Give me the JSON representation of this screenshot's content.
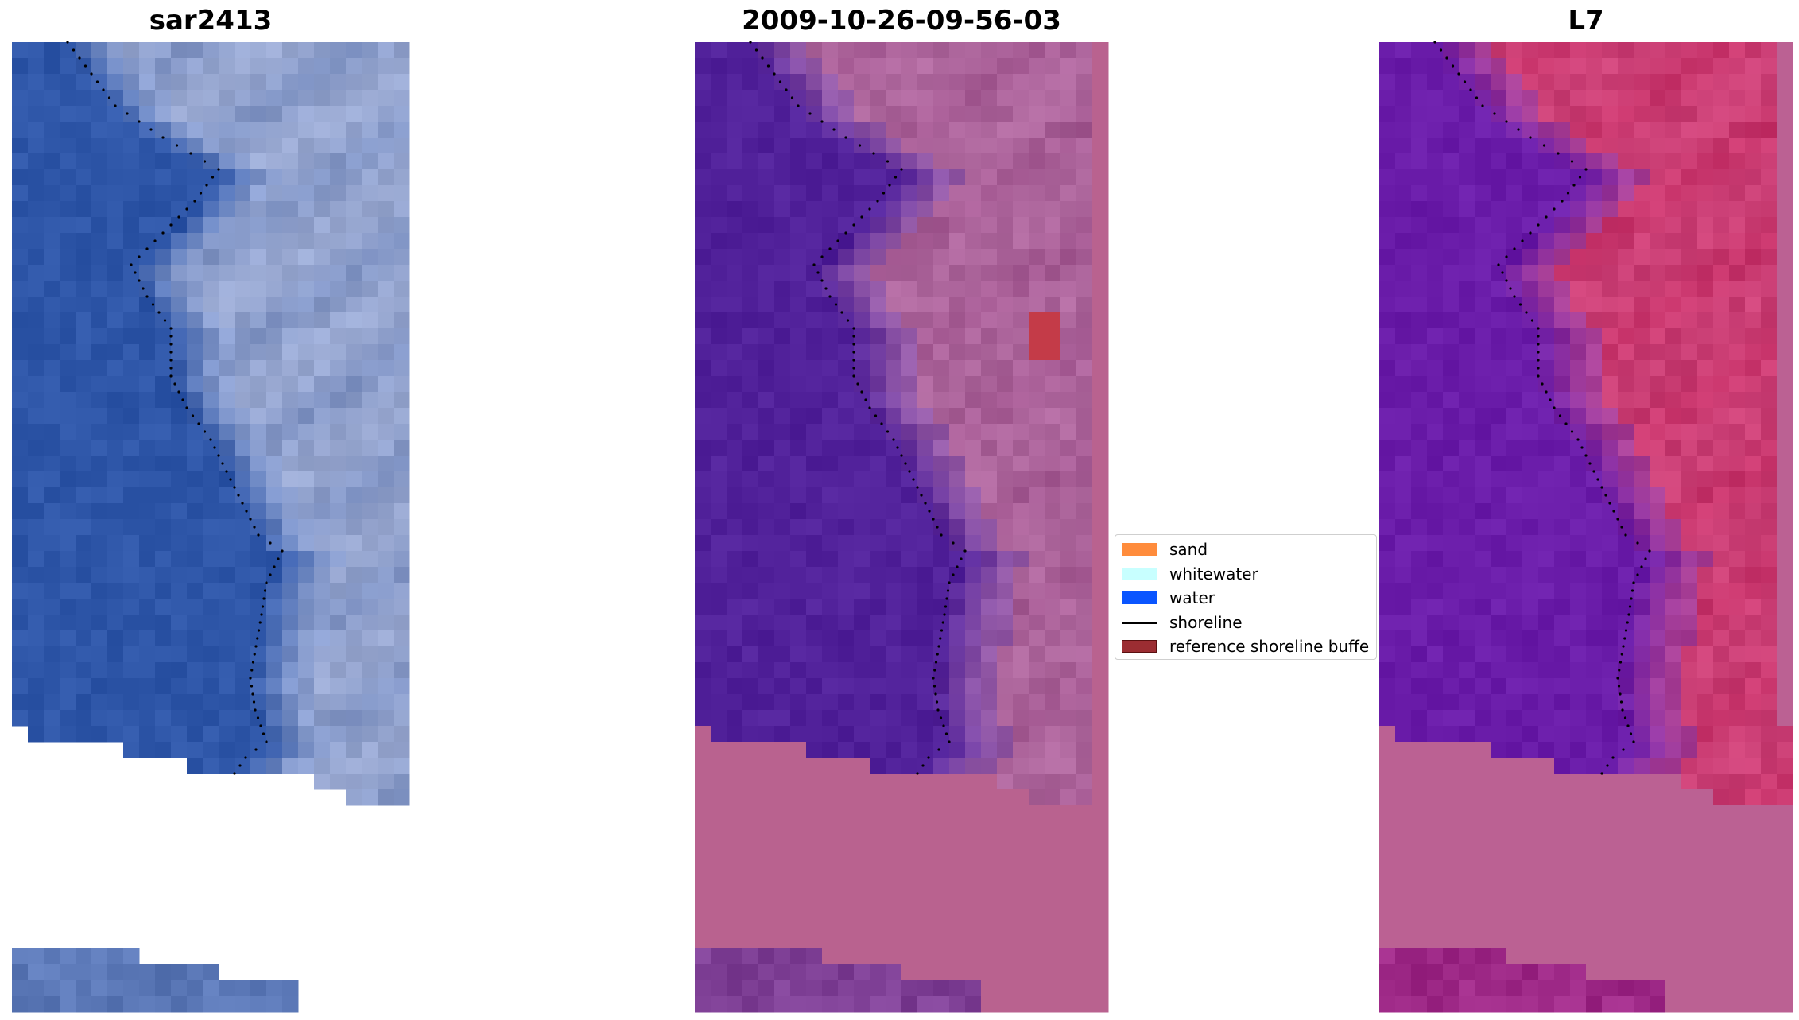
{
  "panels": [
    {
      "title": "sar2413"
    },
    {
      "title": "2009-10-26-09-56-03"
    },
    {
      "title": "L7"
    }
  ],
  "legend": {
    "items": [
      {
        "label": "sand",
        "color": "#ff8c3c",
        "kind": "patch"
      },
      {
        "label": "whitewater",
        "color": "#c8ffff",
        "kind": "patch"
      },
      {
        "label": "water",
        "color": "#0a55ff",
        "kind": "patch"
      },
      {
        "label": "shoreline",
        "color": "#000000",
        "kind": "line"
      },
      {
        "label": "reference shoreline buffe",
        "color": "#9b2d32",
        "kind": "patch"
      }
    ]
  },
  "colors": {
    "sea_rgb": "#2e56a8",
    "land_rgb": "#7f93c4",
    "surf_rgb": "#c9d0ea",
    "class_water": "#51219a",
    "class_land": "#a55a93",
    "class_nodata": "#b9628f",
    "class_buffer": "#c43b48",
    "mndwi_water": "#6a1ca9",
    "mndwi_land": "#c8346b",
    "mndwi_nodata": "#bb6193"
  }
}
